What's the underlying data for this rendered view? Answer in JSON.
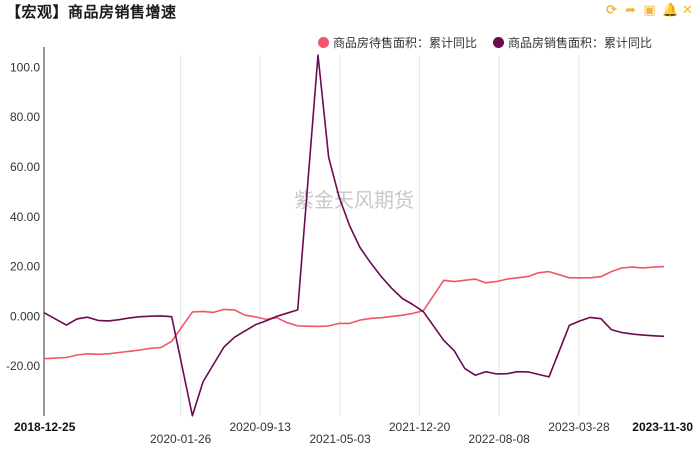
{
  "header": {
    "title": "【宏观】商品房销售增速",
    "tools": [
      {
        "icon": "refresh-icon",
        "glyph": "⟳"
      },
      {
        "icon": "share-icon",
        "glyph": "➦"
      },
      {
        "icon": "save-image-icon",
        "glyph": "▣"
      },
      {
        "icon": "bell-icon",
        "glyph": "🔔"
      },
      {
        "icon": "close-icon",
        "glyph": "✕"
      }
    ]
  },
  "watermark": "紫金天风期货",
  "chart_data": {
    "type": "line",
    "title": "【宏观】商品房销售增速",
    "xlabel": "",
    "ylabel": "",
    "ylim": [
      -40,
      105
    ],
    "yticks": [
      100,
      80,
      60,
      40,
      20,
      0,
      -20
    ],
    "ytick_labels": [
      "100.0",
      "80.00",
      "60.00",
      "40.00",
      "20.00",
      "0.000",
      "-20.00"
    ],
    "xlim": [
      "2018-12-25",
      "2023-11-30"
    ],
    "xticks": [
      {
        "date": "2018-12-25",
        "label": "2018-12-25",
        "row": 1,
        "bold": true
      },
      {
        "date": "2020-01-26",
        "label": "2020-01-26",
        "row": 2,
        "bold": false
      },
      {
        "date": "2020-09-13",
        "label": "2020-09-13",
        "row": 1,
        "bold": false
      },
      {
        "date": "2021-05-03",
        "label": "2021-05-03",
        "row": 2,
        "bold": false
      },
      {
        "date": "2021-12-20",
        "label": "2021-12-20",
        "row": 1,
        "bold": false
      },
      {
        "date": "2022-08-08",
        "label": "2022-08-08",
        "row": 2,
        "bold": false
      },
      {
        "date": "2023-03-28",
        "label": "2023-03-28",
        "row": 1,
        "bold": false
      },
      {
        "date": "2023-11-30",
        "label": "2023-11-30",
        "row": 1,
        "bold": true
      }
    ],
    "grid": {
      "vertical": true,
      "horizontal": false
    },
    "legend_position": "top-right",
    "series": [
      {
        "name": "商品房待售面积：累计同比",
        "color": "#f0566a",
        "points": [
          [
            "2018-12-25",
            -17
          ],
          [
            "2019-02-28",
            -16.5
          ],
          [
            "2019-03-31",
            -15.5
          ],
          [
            "2019-04-30",
            -15
          ],
          [
            "2019-05-31",
            -15.2
          ],
          [
            "2019-06-30",
            -15
          ],
          [
            "2019-07-31",
            -14.5
          ],
          [
            "2019-08-31",
            -14
          ],
          [
            "2019-09-30",
            -13.5
          ],
          [
            "2019-10-31",
            -12.8
          ],
          [
            "2019-11-30",
            -12.5
          ],
          [
            "2019-12-31",
            -10
          ],
          [
            "2020-02-29",
            1.8
          ],
          [
            "2020-03-31",
            2
          ],
          [
            "2020-04-30",
            1.6
          ],
          [
            "2020-05-31",
            2.8
          ],
          [
            "2020-06-30",
            2.6
          ],
          [
            "2020-07-31",
            0.5
          ],
          [
            "2020-08-31",
            -0.2
          ],
          [
            "2020-09-30",
            -1.2
          ],
          [
            "2020-10-31",
            -0.5
          ],
          [
            "2020-11-30",
            -2.5
          ],
          [
            "2020-12-31",
            -3.8
          ],
          [
            "2021-02-28",
            -4
          ],
          [
            "2021-03-31",
            -3.8
          ],
          [
            "2021-04-30",
            -2.8
          ],
          [
            "2021-05-31",
            -2.8
          ],
          [
            "2021-06-30",
            -1.5
          ],
          [
            "2021-07-31",
            -0.8
          ],
          [
            "2021-08-31",
            -0.5
          ],
          [
            "2021-09-30",
            0
          ],
          [
            "2021-10-31",
            0.5
          ],
          [
            "2021-11-30",
            1.2
          ],
          [
            "2021-12-31",
            2.3
          ],
          [
            "2022-02-28",
            14.5
          ],
          [
            "2022-03-31",
            14
          ],
          [
            "2022-04-30",
            14.5
          ],
          [
            "2022-05-31",
            15
          ],
          [
            "2022-06-30",
            13.5
          ],
          [
            "2022-07-31",
            14
          ],
          [
            "2022-08-31",
            15
          ],
          [
            "2022-09-30",
            15.5
          ],
          [
            "2022-10-31",
            16
          ],
          [
            "2022-11-30",
            17.5
          ],
          [
            "2022-12-31",
            18
          ],
          [
            "2023-02-28",
            15.5
          ],
          [
            "2023-03-31",
            15.5
          ],
          [
            "2023-04-30",
            15.5
          ],
          [
            "2023-05-31",
            16
          ],
          [
            "2023-06-30",
            18
          ],
          [
            "2023-07-31",
            19.5
          ],
          [
            "2023-08-31",
            19.8
          ],
          [
            "2023-09-30",
            19.5
          ],
          [
            "2023-10-31",
            19.8
          ],
          [
            "2023-11-30",
            20
          ]
        ]
      },
      {
        "name": "商品房销售面积：累计同比",
        "color": "#6b0a52",
        "points": [
          [
            "2018-12-25",
            1.5
          ],
          [
            "2019-02-28",
            -3.5
          ],
          [
            "2019-03-31",
            -1
          ],
          [
            "2019-04-30",
            -0.3
          ],
          [
            "2019-05-31",
            -1.6
          ],
          [
            "2019-06-30",
            -1.8
          ],
          [
            "2019-07-31",
            -1.3
          ],
          [
            "2019-08-31",
            -0.6
          ],
          [
            "2019-09-30",
            -0.1
          ],
          [
            "2019-10-31",
            0.1
          ],
          [
            "2019-11-30",
            0.2
          ],
          [
            "2019-12-31",
            -0.1
          ],
          [
            "2020-02-29",
            -39.9
          ],
          [
            "2020-03-31",
            -26.3
          ],
          [
            "2020-04-30",
            -19.3
          ],
          [
            "2020-05-31",
            -12.3
          ],
          [
            "2020-06-30",
            -8.4
          ],
          [
            "2020-07-31",
            -5.8
          ],
          [
            "2020-08-31",
            -3.3
          ],
          [
            "2020-09-30",
            -1.8
          ],
          [
            "2020-10-31",
            0
          ],
          [
            "2020-11-30",
            1.3
          ],
          [
            "2020-12-31",
            2.6
          ],
          [
            "2021-02-28",
            104.9
          ],
          [
            "2021-03-31",
            63.8
          ],
          [
            "2021-04-30",
            48.1
          ],
          [
            "2021-05-31",
            36.3
          ],
          [
            "2021-06-30",
            27.7
          ],
          [
            "2021-07-31",
            21.5
          ],
          [
            "2021-08-31",
            15.9
          ],
          [
            "2021-09-30",
            11.3
          ],
          [
            "2021-10-31",
            7.2
          ],
          [
            "2021-11-30",
            4.8
          ],
          [
            "2021-12-31",
            1.9
          ],
          [
            "2022-02-28",
            -9.6
          ],
          [
            "2022-03-31",
            -13.8
          ],
          [
            "2022-04-30",
            -20.9
          ],
          [
            "2022-05-31",
            -23.6
          ],
          [
            "2022-06-30",
            -22.2
          ],
          [
            "2022-07-31",
            -23.1
          ],
          [
            "2022-08-31",
            -23
          ],
          [
            "2022-09-30",
            -22.2
          ],
          [
            "2022-10-31",
            -22.3
          ],
          [
            "2022-11-30",
            -23.3
          ],
          [
            "2022-12-31",
            -24.3
          ],
          [
            "2023-02-28",
            -3.6
          ],
          [
            "2023-03-31",
            -1.8
          ],
          [
            "2023-04-30",
            -0.4
          ],
          [
            "2023-05-31",
            -0.9
          ],
          [
            "2023-06-30",
            -5.3
          ],
          [
            "2023-07-31",
            -6.5
          ],
          [
            "2023-08-31",
            -7.1
          ],
          [
            "2023-09-30",
            -7.5
          ],
          [
            "2023-10-31",
            -7.8
          ],
          [
            "2023-11-30",
            -8
          ]
        ]
      }
    ]
  }
}
